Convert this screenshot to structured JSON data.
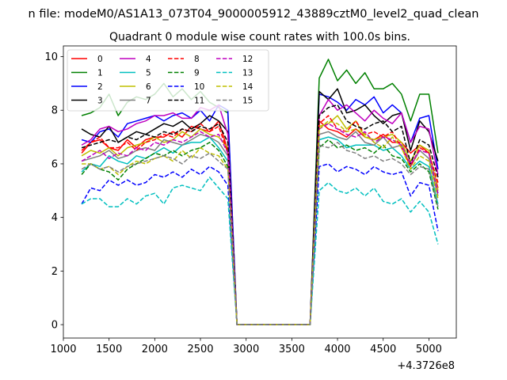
{
  "chart_data": {
    "type": "line",
    "suptitle": "n file: modeM0/AS1A13_073T04_9000005912_43889cztM0_level2_quad_clean",
    "title": "Quadrant 0 module wise count rates with 100.0s bins.",
    "xlabel": "",
    "ylabel": "",
    "x_offset_label": "+4.3726e8",
    "xlim": [
      1000,
      5300
    ],
    "ylim": [
      -0.5,
      10.4
    ],
    "xticks": [
      1000,
      1500,
      2000,
      2500,
      3000,
      3500,
      4000,
      4500,
      5000
    ],
    "yticks": [
      0,
      2,
      4,
      6,
      8,
      10
    ],
    "grid": false,
    "legend_position": "top-left",
    "legend_columns": 4,
    "x": [
      1200,
      1300,
      1400,
      1500,
      1600,
      1700,
      1800,
      1900,
      2000,
      2100,
      2200,
      2300,
      2400,
      2500,
      2600,
      2700,
      2800,
      2900,
      3000,
      3100,
      3200,
      3300,
      3400,
      3500,
      3600,
      3700,
      3800,
      3900,
      4000,
      4100,
      4200,
      4300,
      4400,
      4500,
      4600,
      4700,
      4800,
      4900,
      5000,
      5100
    ],
    "series": [
      {
        "name": "0",
        "color": "#ff0000",
        "dash": "solid",
        "values": [
          6.4,
          6.8,
          6.9,
          6.6,
          6.5,
          6.9,
          6.6,
          6.9,
          7.0,
          7.0,
          7.2,
          7.0,
          7.4,
          7.3,
          7.2,
          7.6,
          6.5,
          0,
          0,
          0,
          0,
          0,
          0,
          0,
          0,
          0,
          7.6,
          7.3,
          7.2,
          7.0,
          7.3,
          7.0,
          6.9,
          7.1,
          6.8,
          6.8,
          6.4,
          6.7,
          6.4,
          5.1
        ]
      },
      {
        "name": "1",
        "color": "#008000",
        "dash": "solid",
        "values": [
          7.8,
          7.9,
          8.1,
          8.6,
          7.8,
          8.3,
          8.5,
          8.4,
          8.6,
          9.0,
          8.5,
          8.8,
          8.4,
          8.7,
          8.3,
          8.1,
          7.9,
          0,
          0,
          0,
          0,
          0,
          0,
          0,
          0,
          0,
          9.2,
          9.9,
          9.1,
          9.5,
          9.0,
          9.4,
          8.8,
          8.8,
          9.0,
          8.6,
          7.6,
          8.6,
          8.6,
          6.4
        ]
      },
      {
        "name": "2",
        "color": "#0000ff",
        "dash": "solid",
        "values": [
          6.9,
          6.8,
          7.2,
          7.3,
          7.0,
          7.5,
          7.6,
          7.7,
          7.8,
          7.6,
          7.8,
          7.9,
          7.7,
          8.0,
          7.6,
          8.2,
          8.0,
          0,
          0,
          0,
          0,
          0,
          0,
          0,
          0,
          0,
          8.6,
          8.5,
          8.3,
          8.0,
          8.4,
          8.2,
          8.5,
          7.9,
          8.2,
          7.9,
          6.8,
          7.7,
          7.8,
          5.8
        ]
      },
      {
        "name": "3",
        "color": "#000000",
        "dash": "solid",
        "values": [
          7.3,
          7.1,
          7.0,
          7.4,
          6.8,
          7.0,
          7.2,
          7.1,
          7.3,
          7.5,
          7.4,
          7.6,
          7.3,
          7.5,
          7.8,
          7.6,
          7.2,
          0,
          0,
          0,
          0,
          0,
          0,
          0,
          0,
          0,
          8.7,
          8.4,
          8.8,
          7.9,
          8.0,
          8.2,
          7.8,
          7.5,
          7.8,
          7.9,
          6.5,
          7.6,
          7.2,
          6.1
        ]
      },
      {
        "name": "4",
        "color": "#bf00bf",
        "dash": "solid",
        "values": [
          6.7,
          6.9,
          7.3,
          7.4,
          7.2,
          7.3,
          7.5,
          7.6,
          7.8,
          7.8,
          7.9,
          7.7,
          7.7,
          8.1,
          8.0,
          8.2,
          7.1,
          0,
          0,
          0,
          0,
          0,
          0,
          0,
          0,
          0,
          7.8,
          8.4,
          8.0,
          8.2,
          7.9,
          7.6,
          8.0,
          7.7,
          7.5,
          7.9,
          6.8,
          7.4,
          7.3,
          5.6
        ]
      },
      {
        "name": "5",
        "color": "#00bfbf",
        "dash": "solid",
        "values": [
          5.7,
          6.0,
          5.9,
          6.3,
          6.1,
          6.0,
          6.3,
          6.2,
          6.4,
          6.6,
          6.4,
          6.7,
          6.8,
          6.8,
          7.0,
          6.6,
          6.1,
          0,
          0,
          0,
          0,
          0,
          0,
          0,
          0,
          0,
          6.9,
          7.0,
          6.9,
          6.6,
          6.7,
          6.7,
          6.7,
          6.5,
          6.6,
          6.3,
          5.8,
          6.1,
          5.9,
          4.5
        ]
      },
      {
        "name": "6",
        "color": "#bfbf00",
        "dash": "solid",
        "values": [
          6.3,
          6.5,
          6.4,
          6.6,
          6.3,
          6.6,
          6.7,
          6.8,
          7.0,
          6.8,
          6.9,
          7.2,
          7.0,
          7.3,
          7.1,
          7.0,
          6.6,
          0,
          0,
          0,
          0,
          0,
          0,
          0,
          0,
          0,
          7.4,
          7.5,
          7.8,
          7.3,
          7.6,
          7.0,
          6.9,
          7.0,
          7.1,
          6.8,
          6.1,
          6.7,
          6.5,
          5.0
        ]
      },
      {
        "name": "7",
        "color": "#808080",
        "dash": "solid",
        "values": [
          6.1,
          6.2,
          6.3,
          6.5,
          6.2,
          6.3,
          6.5,
          6.6,
          6.5,
          6.9,
          6.8,
          6.7,
          6.9,
          7.1,
          7.0,
          6.8,
          6.3,
          0,
          0,
          0,
          0,
          0,
          0,
          0,
          0,
          0,
          7.1,
          7.2,
          7.0,
          6.9,
          7.2,
          6.8,
          6.7,
          7.0,
          6.6,
          6.7,
          5.9,
          6.5,
          6.2,
          4.8
        ]
      },
      {
        "name": "8",
        "color": "#ff0000",
        "dash": "dashed",
        "values": [
          6.5,
          6.8,
          7.0,
          6.6,
          6.6,
          6.8,
          6.5,
          6.8,
          6.9,
          7.1,
          7.0,
          7.3,
          7.2,
          7.5,
          7.2,
          7.4,
          6.4,
          0,
          0,
          0,
          0,
          0,
          0,
          0,
          0,
          0,
          7.5,
          7.8,
          7.3,
          7.2,
          7.6,
          7.1,
          7.2,
          7.0,
          7.2,
          6.6,
          5.9,
          6.6,
          6.4,
          5.3
        ]
      },
      {
        "name": "9",
        "color": "#008000",
        "dash": "dashed",
        "values": [
          5.6,
          6.0,
          5.8,
          5.7,
          5.4,
          5.8,
          6.0,
          6.2,
          6.4,
          6.3,
          6.5,
          6.3,
          6.5,
          6.6,
          6.8,
          6.5,
          5.9,
          0,
          0,
          0,
          0,
          0,
          0,
          0,
          0,
          0,
          6.6,
          6.9,
          6.6,
          6.7,
          6.5,
          6.6,
          6.4,
          6.7,
          6.3,
          6.2,
          5.7,
          6.0,
          5.7,
          4.3
        ]
      },
      {
        "name": "10",
        "color": "#0000ff",
        "dash": "dashed",
        "values": [
          4.5,
          5.1,
          5.0,
          5.4,
          5.2,
          5.4,
          5.2,
          5.3,
          5.6,
          5.5,
          5.7,
          5.5,
          5.8,
          5.6,
          5.9,
          5.7,
          5.2,
          0,
          0,
          0,
          0,
          0,
          0,
          0,
          0,
          0,
          5.9,
          6.0,
          5.7,
          5.9,
          5.8,
          5.6,
          5.9,
          5.7,
          5.6,
          5.7,
          4.8,
          5.3,
          5.2,
          3.5
        ]
      },
      {
        "name": "11",
        "color": "#000000",
        "dash": "dashed",
        "values": [
          6.6,
          6.7,
          6.8,
          6.9,
          6.8,
          7.0,
          6.9,
          7.1,
          7.0,
          7.2,
          7.1,
          7.3,
          7.2,
          7.4,
          7.3,
          7.5,
          6.8,
          0,
          0,
          0,
          0,
          0,
          0,
          0,
          0,
          0,
          7.8,
          8.1,
          8.2,
          7.6,
          7.4,
          7.3,
          7.5,
          7.6,
          7.2,
          7.4,
          6.0,
          6.9,
          6.7,
          5.5
        ]
      },
      {
        "name": "12",
        "color": "#bf00bf",
        "dash": "dashed",
        "values": [
          6.1,
          6.3,
          6.5,
          6.2,
          6.4,
          6.3,
          6.6,
          6.5,
          6.8,
          6.7,
          6.9,
          6.8,
          7.0,
          7.2,
          7.0,
          7.1,
          6.4,
          0,
          0,
          0,
          0,
          0,
          0,
          0,
          0,
          0,
          7.3,
          7.5,
          7.3,
          7.1,
          7.0,
          7.2,
          6.8,
          7.0,
          6.9,
          6.7,
          6.0,
          6.5,
          6.4,
          4.9
        ]
      },
      {
        "name": "13",
        "color": "#00bfbf",
        "dash": "dashed",
        "values": [
          4.5,
          4.7,
          4.7,
          4.4,
          4.4,
          4.7,
          4.5,
          4.8,
          4.9,
          4.5,
          5.1,
          5.2,
          5.1,
          5.0,
          5.5,
          5.1,
          4.7,
          0,
          0,
          0,
          0,
          0,
          0,
          0,
          0,
          0,
          5.0,
          5.3,
          5.0,
          4.9,
          5.1,
          4.8,
          5.1,
          4.6,
          4.5,
          4.7,
          4.2,
          4.6,
          4.2,
          3.0
        ]
      },
      {
        "name": "14",
        "color": "#bfbf00",
        "dash": "dashed",
        "values": [
          6.0,
          6.0,
          5.8,
          5.9,
          5.6,
          5.9,
          6.1,
          6.0,
          6.2,
          6.3,
          6.1,
          6.5,
          6.2,
          6.6,
          6.4,
          6.3,
          5.8,
          0,
          0,
          0,
          0,
          0,
          0,
          0,
          0,
          0,
          7.3,
          7.6,
          7.5,
          7.2,
          7.3,
          7.1,
          6.8,
          6.6,
          7.0,
          6.6,
          5.8,
          6.3,
          6.1,
          4.7
        ]
      },
      {
        "name": "15",
        "color": "#808080",
        "dash": "dashed",
        "values": [
          5.8,
          6.0,
          5.8,
          5.9,
          5.7,
          5.9,
          6.0,
          6.1,
          6.2,
          6.3,
          6.2,
          6.0,
          6.3,
          6.2,
          6.4,
          6.1,
          5.8,
          0,
          0,
          0,
          0,
          0,
          0,
          0,
          0,
          0,
          6.7,
          6.6,
          6.8,
          6.5,
          6.4,
          6.2,
          6.3,
          6.1,
          6.2,
          6.0,
          5.6,
          5.9,
          5.8,
          4.4
        ]
      }
    ]
  }
}
